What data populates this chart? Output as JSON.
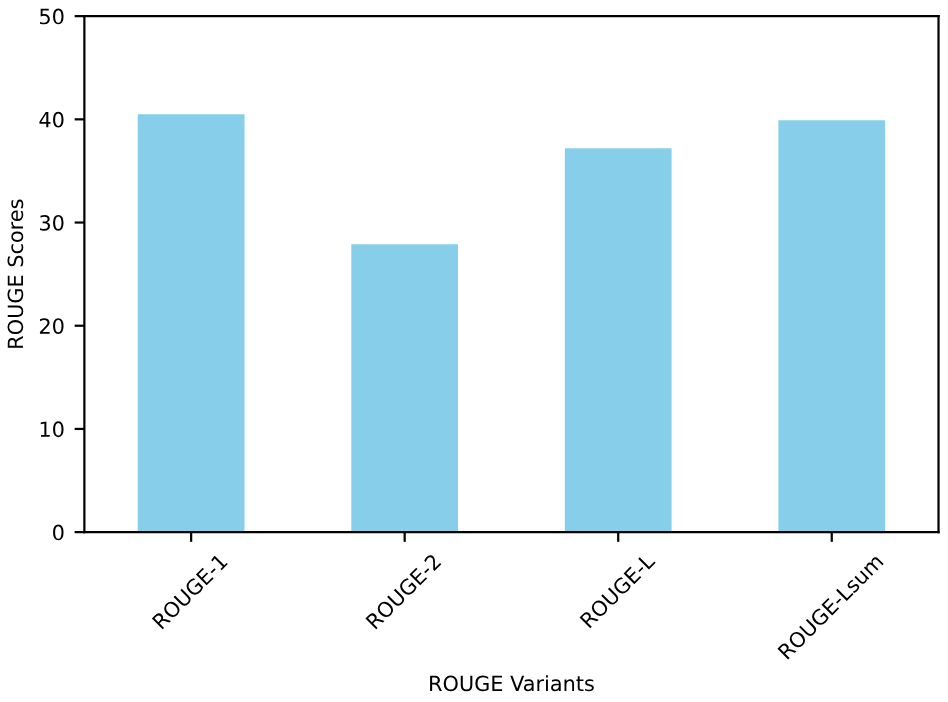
{
  "chart_data": {
    "type": "bar",
    "xlabel": "ROUGE Variants",
    "ylabel": "ROUGE Scores",
    "categories": [
      "ROUGE-1",
      "ROUGE-2",
      "ROUGE-L",
      "ROUGE-Lsum"
    ],
    "values": [
      40.5,
      27.9,
      37.2,
      39.9
    ],
    "color": "#87ceeb",
    "ylim": [
      0,
      50
    ],
    "yticks": [
      0,
      10,
      20,
      30,
      40,
      50
    ],
    "grid": false,
    "legend": false
  }
}
